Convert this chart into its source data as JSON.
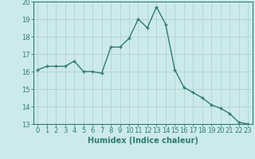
{
  "x": [
    0,
    1,
    2,
    3,
    4,
    5,
    6,
    7,
    8,
    9,
    10,
    11,
    12,
    13,
    14,
    15,
    16,
    17,
    18,
    19,
    20,
    21,
    22,
    23
  ],
  "y": [
    16.1,
    16.3,
    16.3,
    16.3,
    16.6,
    16.0,
    16.0,
    15.9,
    17.4,
    17.4,
    17.9,
    19.0,
    18.5,
    19.7,
    18.7,
    16.1,
    15.1,
    14.8,
    14.5,
    14.1,
    13.9,
    13.6,
    13.1,
    13.0
  ],
  "line_color": "#2e7d6e",
  "marker": "+",
  "marker_size": 3.5,
  "bg_color": "#cceaea",
  "grid_color": "#b0cccc",
  "xlabel": "Humidex (Indice chaleur)",
  "ylim": [
    13,
    20
  ],
  "xlim_min": -0.5,
  "xlim_max": 23.5,
  "yticks": [
    13,
    14,
    15,
    16,
    17,
    18,
    19,
    20
  ],
  "xticks": [
    0,
    1,
    2,
    3,
    4,
    5,
    6,
    7,
    8,
    9,
    10,
    11,
    12,
    13,
    14,
    15,
    16,
    17,
    18,
    19,
    20,
    21,
    22,
    23
  ],
  "tick_color": "#2e7d6e",
  "label_color": "#2e7d6e",
  "xlabel_fontsize": 7,
  "tick_fontsize": 6,
  "linewidth": 1.0
}
